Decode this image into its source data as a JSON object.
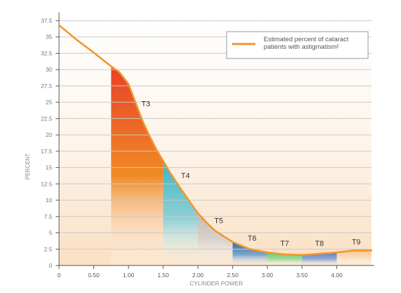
{
  "chart_data": {
    "type": "area",
    "xlabel": "CYLINDER POWER",
    "ylabel": "PERCENT",
    "xlim": [
      0,
      4.5
    ],
    "ylim": [
      0,
      37.5
    ],
    "grid": true,
    "legend_position": "top-right",
    "x_ticks": [
      0,
      0.5,
      1.0,
      1.5,
      2.0,
      2.5,
      3.0,
      3.5,
      4.0
    ],
    "x_tick_labels": [
      "0",
      "0.50",
      "1.00",
      "1.50",
      "2.00",
      "2.50",
      "3.00",
      "3.50",
      "4.00"
    ],
    "y_ticks": [
      0,
      2.5,
      5,
      7.5,
      10,
      12.5,
      15,
      17.5,
      20,
      22.5,
      25,
      27.5,
      30,
      32.5,
      35,
      37.5
    ],
    "y_tick_labels": [
      "0",
      "2.5",
      "5",
      "7.5",
      "10",
      "12.5",
      "15",
      "17.5",
      "20",
      "22.5",
      "25",
      "27.5",
      "30",
      "32.5",
      "35",
      "37.5"
    ],
    "series": [
      {
        "name": "Estimated percent of cataract patients with astigmatism²",
        "color": "#f2962e",
        "x": [
          0,
          0.25,
          0.5,
          0.75,
          0.87,
          1.0,
          1.1,
          1.2,
          1.3,
          1.4,
          1.5,
          1.6,
          1.75,
          1.9,
          2.0,
          2.15,
          2.25,
          2.5,
          2.75,
          3.0,
          3.25,
          3.5,
          3.75,
          4.0,
          4.25,
          4.5
        ],
        "y": [
          36.8,
          34.6,
          32.6,
          30.5,
          29.6,
          27.8,
          25.0,
          22.2,
          19.9,
          17.8,
          16.0,
          14.2,
          11.8,
          9.5,
          8.0,
          6.3,
          5.3,
          3.6,
          2.5,
          2.0,
          1.7,
          1.6,
          1.8,
          2.0,
          2.3,
          2.3
        ]
      }
    ],
    "regions": [
      {
        "label": "T3",
        "x_start": 0.75,
        "x_end": 1.5,
        "color_top": "#e8412a",
        "color_mid": "#f08a24",
        "label_x": 1.25,
        "label_y": 24.4
      },
      {
        "label": "T4",
        "x_start": 1.5,
        "x_end": 2.0,
        "color_top": "#3fb3c0",
        "color_mid": "#8fd0d4",
        "label_x": 1.82,
        "label_y": 13.4
      },
      {
        "label": "T5",
        "x_start": 2.0,
        "x_end": 2.5,
        "color_top": "#c2b8b0",
        "color_mid": "#ddd6cf",
        "label_x": 2.3,
        "label_y": 6.5
      },
      {
        "label": "T6",
        "x_start": 2.5,
        "x_end": 3.0,
        "color_top": "#2b6fb0",
        "color_mid": "#7fa8c9",
        "label_x": 2.78,
        "label_y": 3.8
      },
      {
        "label": "T7",
        "x_start": 3.0,
        "x_end": 3.5,
        "color_top": "#6ac46a",
        "color_mid": "#a8dca0",
        "label_x": 3.25,
        "label_y": 3.0
      },
      {
        "label": "T8",
        "x_start": 3.5,
        "x_end": 4.0,
        "color_top": "#5a7fc0",
        "color_mid": "#9bb0d6",
        "label_x": 3.75,
        "label_y": 3.0
      },
      {
        "label": "T9",
        "x_start": 4.0,
        "x_end": 4.5,
        "color_top": "#f7c896",
        "color_mid": "#fbe3c6",
        "label_x": 4.28,
        "label_y": 3.2
      }
    ]
  }
}
